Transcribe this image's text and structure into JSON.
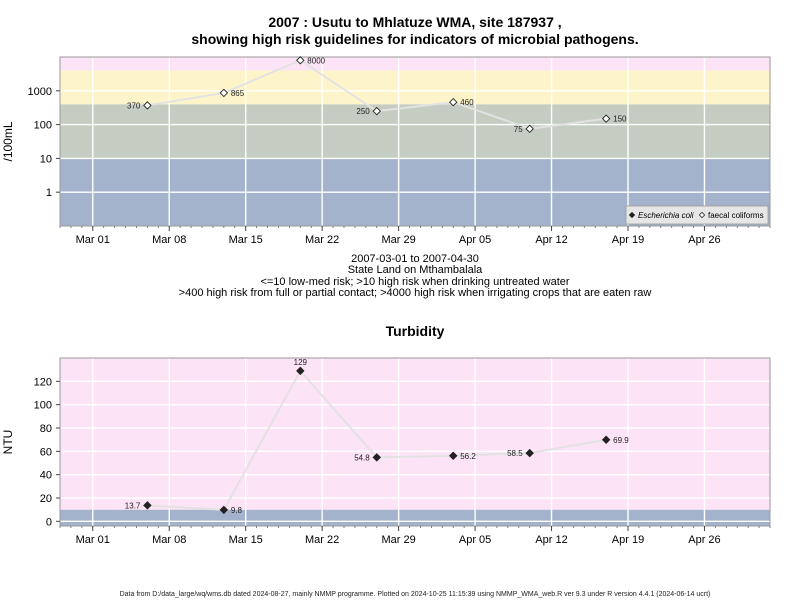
{
  "chart_data": [
    {
      "type": "line",
      "title": "2007 : Usutu to Mhlatuze WMA, site 187937 ,",
      "subtitle": "showing high risk guidelines for indicators of microbial pathogens.",
      "ylabel": "/100mL",
      "yscale": "log",
      "ylim": [
        0.1,
        10000
      ],
      "yticks": [
        1,
        10,
        100,
        1000
      ],
      "yticklabels": [
        "1",
        "10",
        "100",
        "1000"
      ],
      "xlim": [
        "2007-02-26",
        "2007-05-02"
      ],
      "xticks": [
        "2007-03-01",
        "2007-03-08",
        "2007-03-15",
        "2007-03-22",
        "2007-03-29",
        "2007-04-05",
        "2007-04-12",
        "2007-04-19",
        "2007-04-26"
      ],
      "xticklabels": [
        "Mar 01",
        "Mar 08",
        "Mar 15",
        "Mar 22",
        "Mar 29",
        "Apr 05",
        "Apr 12",
        "Apr 19",
        "Apr 26"
      ],
      "bands": [
        {
          "from": 0.1,
          "to": 10,
          "color": "#a3b3cc"
        },
        {
          "from": 10,
          "to": 400,
          "color": "#c5ccc2"
        },
        {
          "from": 400,
          "to": 4000,
          "color": "#fdf5c9"
        },
        {
          "from": 4000,
          "to": 10000,
          "color": "#fde3f6"
        }
      ],
      "series": [
        {
          "name": "faecal coliforms",
          "marker": "open-diamond",
          "x": [
            "2007-03-06",
            "2007-03-13",
            "2007-03-20",
            "2007-03-27",
            "2007-04-03",
            "2007-04-10",
            "2007-04-17"
          ],
          "y": [
            370,
            865,
            8000,
            250,
            460,
            75,
            150
          ],
          "labels": [
            "370",
            "865",
            "8000",
            "250",
            "460",
            "75",
            "150"
          ],
          "label_side": [
            "left",
            "right",
            "right",
            "left",
            "right",
            "left",
            "right"
          ]
        }
      ],
      "legend": {
        "position": "bottom-right",
        "entries": [
          {
            "name": "Escherichia coli",
            "marker": "filled-diamond",
            "italic": true
          },
          {
            "name": "faecal coliforms",
            "marker": "open-diamond",
            "italic": false
          }
        ]
      },
      "notes": [
        "2007-03-01 to 2007-04-30",
        "State Land on Mthambalala",
        "<=10 low-med risk; >10 high risk when drinking untreated water",
        ">400 high risk from full or partial contact; >4000 high risk when irrigating crops that are eaten raw"
      ]
    },
    {
      "type": "line",
      "title": "Turbidity",
      "ylabel": "NTU",
      "ylim": [
        -4,
        140
      ],
      "yticks": [
        0,
        20,
        40,
        60,
        80,
        100,
        120
      ],
      "yticklabels": [
        "0",
        "20",
        "40",
        "60",
        "80",
        "100",
        "120"
      ],
      "xlim": [
        "2007-02-26",
        "2007-05-02"
      ],
      "xticks": [
        "2007-03-01",
        "2007-03-08",
        "2007-03-15",
        "2007-03-22",
        "2007-03-29",
        "2007-04-05",
        "2007-04-12",
        "2007-04-19",
        "2007-04-26"
      ],
      "xticklabels": [
        "Mar 01",
        "Mar 08",
        "Mar 15",
        "Mar 22",
        "Mar 29",
        "Apr 05",
        "Apr 12",
        "Apr 19",
        "Apr 26"
      ],
      "bands": [
        {
          "from": -4,
          "to": 10,
          "color": "#a3b3cc"
        },
        {
          "from": 10,
          "to": 140,
          "color": "#fde3f6"
        }
      ],
      "series": [
        {
          "name": "Turbidity",
          "marker": "filled-diamond",
          "x": [
            "2007-03-06",
            "2007-03-13",
            "2007-03-20",
            "2007-03-27",
            "2007-04-03",
            "2007-04-10",
            "2007-04-17"
          ],
          "y": [
            13.7,
            9.8,
            129,
            54.8,
            56.2,
            58.5,
            69.9
          ],
          "labels": [
            "13.7",
            "9.8",
            "129",
            "54.8",
            "56.2",
            "58.5",
            "69.9"
          ],
          "label_side": [
            "left",
            "right",
            "top",
            "left",
            "right",
            "left",
            "right"
          ]
        }
      ]
    }
  ],
  "footer": "Data from D:/data_large/wq/wms.db dated 2024-08-27, mainly NMMP programme. Plotted on 2024-10-25 11:15:39 using NMMP_WMA_web.R ver 9.3 under R version 4.4.1 (2024-06-14 ucrt)"
}
